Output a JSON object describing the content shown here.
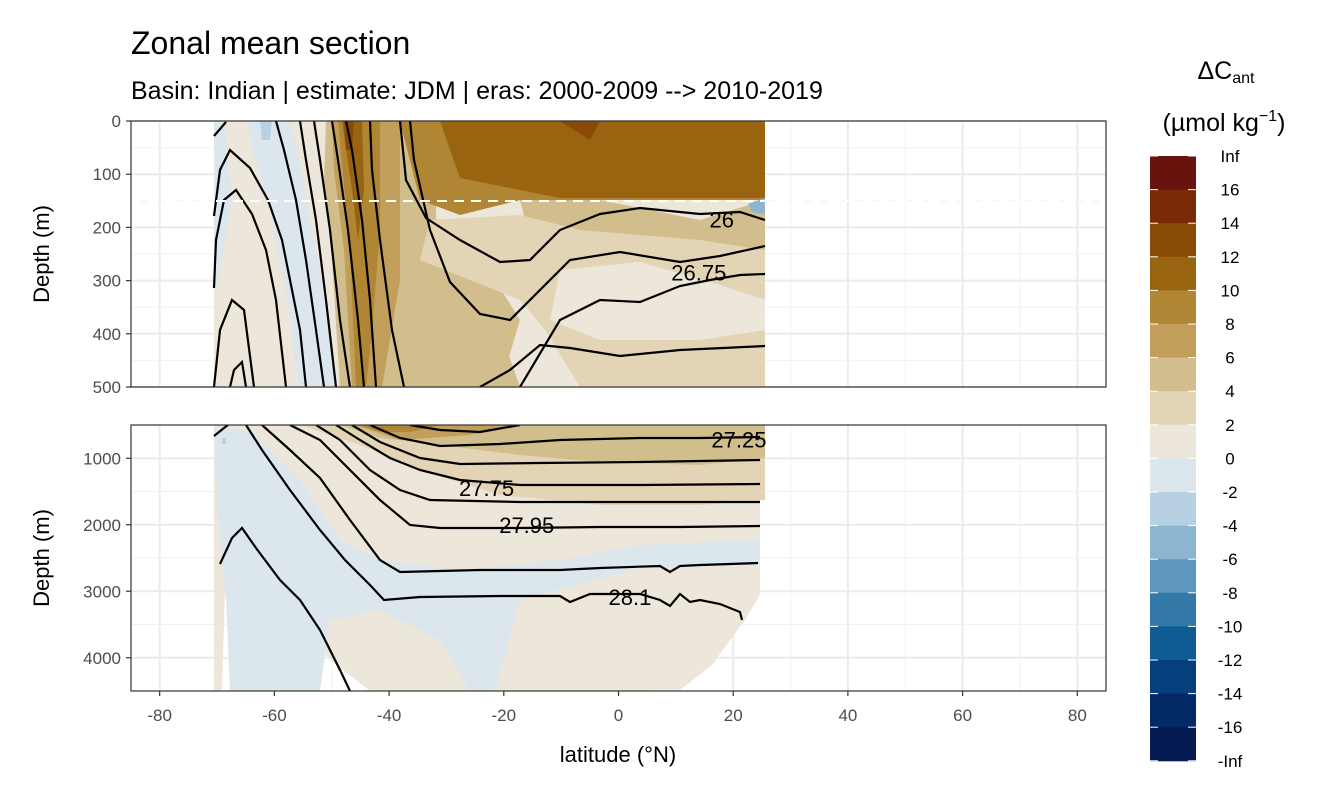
{
  "chart_data": {
    "type": "heatmap",
    "title": "Zonal mean section",
    "subtitle": "Basin: Indian | estimate: JDM  | eras: 2000-2009 --> 2010-2019",
    "xlabel": "latitude (°N)",
    "ylabel": "Depth (m)",
    "xlim": [
      -85,
      85
    ],
    "x_ticks": [
      -80,
      -60,
      -40,
      -20,
      0,
      20,
      40,
      60,
      80
    ],
    "x_tick_labels": [
      "-80",
      "-60",
      "-40",
      "-20",
      "0",
      "20",
      "40",
      "60",
      "80"
    ],
    "panels": [
      {
        "name": "upper",
        "ylim": [
          0,
          500
        ],
        "y_ticks": [
          0,
          100,
          200,
          300,
          400,
          500
        ],
        "y_tick_labels": [
          "0",
          "100",
          "200",
          "300",
          "400",
          "500"
        ],
        "reference_line_depth": 150,
        "data_lat_range": [
          -70,
          25.5
        ]
      },
      {
        "name": "lower",
        "ylim": [
          500,
          4500
        ],
        "y_ticks": [
          1000,
          2000,
          3000,
          4000
        ],
        "y_tick_labels": [
          "1000",
          "2000",
          "3000",
          "4000"
        ],
        "data_lat_range": [
          -70,
          25.5
        ]
      }
    ],
    "legend": {
      "title_main": "ΔC",
      "title_sub": "ant",
      "title_units_pre": "(µmol kg",
      "title_units_sup": "−1",
      "title_units_post": ")",
      "position": "right",
      "break_labels": [
        "Inf",
        "16",
        "14",
        "12",
        "10",
        "8",
        "6",
        "4",
        "2",
        "0",
        "-2",
        "-4",
        "-6",
        "-8",
        "-10",
        "-12",
        "-14",
        "-16",
        "-Inf"
      ],
      "colors": [
        "#67140e",
        "#7a2b05",
        "#8a4a07",
        "#99640f",
        "#b08533",
        "#c19f5b",
        "#d2bd8c",
        "#e3d4b6",
        "#ede6da",
        "#dce7ed",
        "#b7d1e2",
        "#8cb5cf",
        "#5e97bd",
        "#3279a8",
        "#0f5b94",
        "#053f7c",
        "#032a66",
        "#051b52"
      ]
    },
    "isopycnals": [
      {
        "label": "26",
        "panel": "upper",
        "lat": 18,
        "depth": 185
      },
      {
        "label": "26.75",
        "panel": "upper",
        "lat": 14,
        "depth": 285
      },
      {
        "label": "27.25",
        "panel": "lower",
        "lat": 21,
        "depth": 720
      },
      {
        "label": "27.75",
        "panel": "lower",
        "lat": -23,
        "depth": 1450
      },
      {
        "label": "27.95",
        "panel": "lower",
        "lat": -16,
        "depth": 2000
      },
      {
        "label": "28.1",
        "panel": "lower",
        "lat": 2,
        "depth": 3090
      }
    ]
  }
}
